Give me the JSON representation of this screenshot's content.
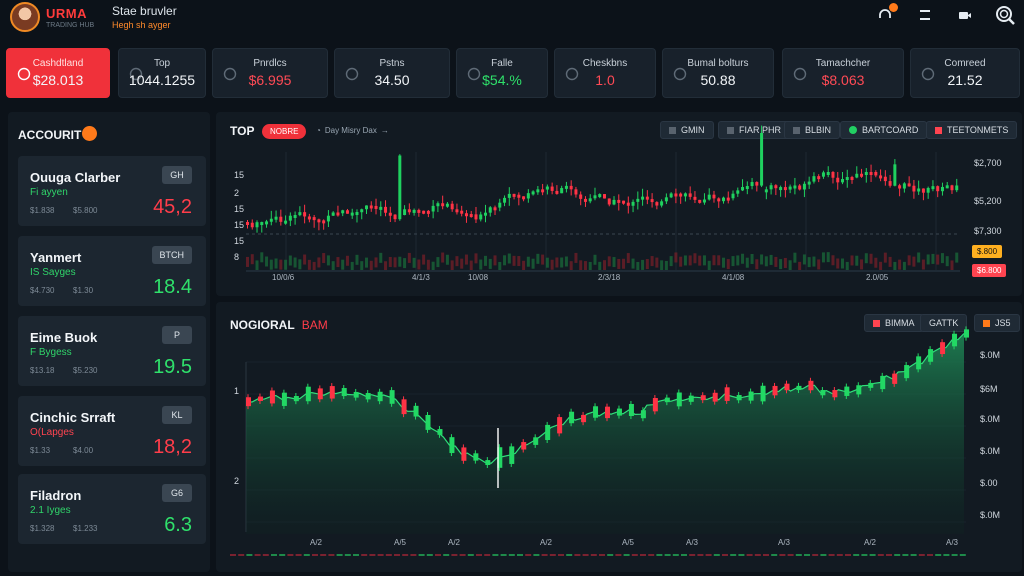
{
  "header": {
    "brand_name": "URMA",
    "brand_sub": "TRADING HUB",
    "title": "Stae bruvler",
    "subtitle": "Hegh sh ayger"
  },
  "colors": {
    "accent_red": "#f0313a",
    "green": "#2ee06a",
    "orange": "#ff7a1a",
    "bg": "#0c1219",
    "panel": "#121a22"
  },
  "stats": [
    {
      "label": "Cashdtland",
      "value": "$28.013",
      "tone": "white",
      "icon": "card-icon",
      "active": true
    },
    {
      "label": "Top",
      "value": "1044.1255",
      "tone": "white",
      "icon": "hex-icon"
    },
    {
      "label": "Pnrdlcs",
      "value": "$6.995",
      "tone": "red",
      "icon": "info-icon"
    },
    {
      "label": "Pstns",
      "value": "34.50",
      "tone": "white",
      "icon": "wallet-icon"
    },
    {
      "label": "Falle",
      "value": "$54.%",
      "tone": "green",
      "icon": "flag-icon"
    },
    {
      "label": "Cheskbns",
      "value": "1.0",
      "tone": "red",
      "icon": "shield-icon"
    },
    {
      "label": "Bumal bolturs",
      "value": "50.88",
      "tone": "white",
      "icon": "compass-icon"
    },
    {
      "label": "Tamachcher",
      "value": "$8.063",
      "tone": "red",
      "icon": "lock-icon"
    },
    {
      "label": "Comreed",
      "value": "21.52",
      "tone": "white",
      "icon": "dots-icon"
    }
  ],
  "accounts_panel": {
    "title": "ACCOURIT",
    "items": [
      {
        "name": "Ouuga Clarber",
        "sub": "Fi ayyen",
        "sub_tone": "green",
        "s1": "$1.838",
        "s2": "$5.800",
        "value": "45,2",
        "tone": "red",
        "tag": "GH"
      },
      {
        "name": "Yanmert",
        "sub": "IS Sayges",
        "sub_tone": "green",
        "s1": "$4.730",
        "s2": "$1.30",
        "value": "18.4",
        "tone": "green",
        "tag": "BTCH"
      },
      {
        "name": "Eime Buok",
        "sub": "F Bygess",
        "sub_tone": "green",
        "s1": "$13.18",
        "s2": "$5.230",
        "value": "19.5",
        "tone": "green",
        "tag": "P"
      },
      {
        "name": "Cinchic Srraft",
        "sub": "O(Lapges",
        "sub_tone": "red",
        "s1": "$1.33",
        "s2": "$4.00",
        "value": "18,2",
        "tone": "red",
        "tag": "KL"
      },
      {
        "name": "Filadron",
        "sub": "2.1 Iyges",
        "sub_tone": "green",
        "s1": "$1.328",
        "s2": "$1.233",
        "value": "6.3",
        "tone": "green",
        "tag": "G6"
      }
    ]
  },
  "top_chart": {
    "title": "TOP",
    "badge": "NOBRE",
    "note": "Day Misry Dax",
    "buttons": [
      "GMIN",
      "FIAR PHR",
      "BLBIN",
      "BARTCOARD",
      "TEETONMETS"
    ],
    "y_left": [
      "15",
      "2",
      "15",
      "15",
      "15",
      "8"
    ],
    "y_right": [
      "$2,700",
      "$5,200",
      "$7,300"
    ],
    "price_tags": [
      "$.800",
      "$6.800"
    ],
    "x_labels": [
      "10/0/6",
      "4/1/3",
      "10/08",
      "2/3/18",
      "4/1/08",
      "2.0/05"
    ]
  },
  "bottom_chart": {
    "title": "NOGIORAL",
    "title_accent": "BAM",
    "buttons": [
      "BIMMA",
      "GATTK",
      "JS5"
    ],
    "y_left": [
      "1",
      "2"
    ],
    "y_right": [
      "$.0M",
      "$6M",
      "$.0M",
      "$.0M",
      "$.00",
      "$.0M"
    ],
    "x_labels": [
      "A/2",
      "A/5",
      "A/2",
      "A/2",
      "A/5",
      "A/3",
      "A/3",
      "A/2",
      "A/3"
    ]
  }
}
